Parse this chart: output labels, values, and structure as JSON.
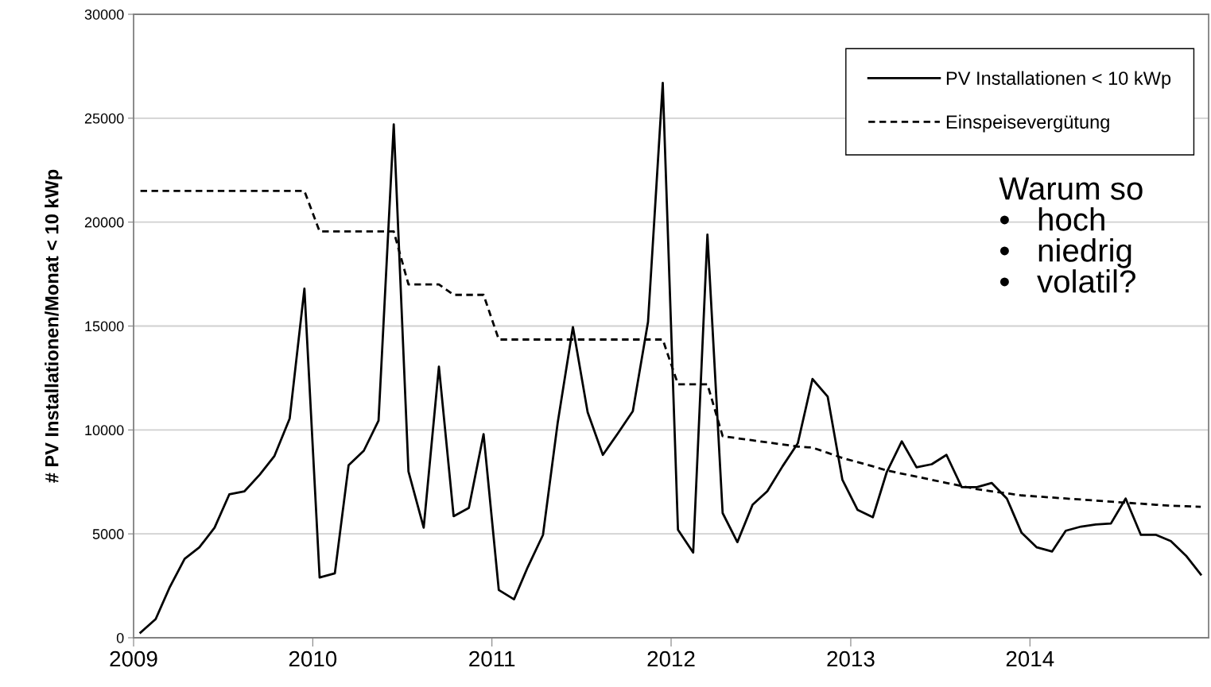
{
  "chart_data": {
    "type": "line",
    "ylabel": "# PV Installationen/Monat < 10 kWp",
    "x": [
      "2009-01-15",
      "2009-02-15",
      "2009-03-15",
      "2009-04-15",
      "2009-05-15",
      "2009-06-15",
      "2009-07-15",
      "2009-08-15",
      "2009-09-15",
      "2009-10-15",
      "2009-11-15",
      "2009-12-15",
      "2010-01-15",
      "2010-02-15",
      "2010-03-15",
      "2010-04-15",
      "2010-05-15",
      "2010-06-15",
      "2010-07-15",
      "2010-08-15",
      "2010-09-15",
      "2010-10-15",
      "2010-11-15",
      "2010-12-15",
      "2011-01-15",
      "2011-02-15",
      "2011-03-15",
      "2011-04-15",
      "2011-05-15",
      "2011-06-15",
      "2011-07-15",
      "2011-08-15",
      "2011-09-15",
      "2011-10-15",
      "2011-11-15",
      "2011-12-15",
      "2012-01-15",
      "2012-02-15",
      "2012-03-15",
      "2012-04-15",
      "2012-05-15",
      "2012-06-15",
      "2012-07-15",
      "2012-08-15",
      "2012-09-15",
      "2012-10-15",
      "2012-11-15",
      "2012-12-15",
      "2013-01-15",
      "2013-02-15",
      "2013-03-15",
      "2013-04-15",
      "2013-05-15",
      "2013-06-15",
      "2013-07-15",
      "2013-08-15",
      "2013-09-15",
      "2013-10-15",
      "2013-11-15",
      "2013-12-15",
      "2014-01-15",
      "2014-02-15",
      "2014-03-15",
      "2014-04-15",
      "2014-05-15",
      "2014-06-15",
      "2014-07-15",
      "2014-08-15",
      "2014-09-15",
      "2014-10-15",
      "2014-11-15",
      "2014-12-15"
    ],
    "series": [
      {
        "name": "PV Installationen < 10 kWp",
        "color": "#000000",
        "line_style": "solid",
        "values": [
          250,
          900,
          2400,
          3800,
          4350,
          5300,
          6900,
          7050,
          7850,
          8750,
          10550,
          16800,
          2900,
          3100,
          8300,
          9000,
          10450,
          24700,
          8000,
          5300,
          13050,
          5850,
          6250,
          9800,
          2300,
          1850,
          3400,
          4950,
          10350,
          14950,
          10850,
          8800,
          9850,
          10900,
          15200,
          26700,
          5200,
          4100,
          19400,
          6000,
          4600,
          6400,
          7050,
          8250,
          9350,
          12450,
          11600,
          7600,
          6150,
          5800,
          7950,
          9450,
          8200,
          8350,
          8800,
          7250,
          7250,
          7450,
          6700,
          5050,
          4350,
          4150,
          5150,
          5350,
          5450,
          5500,
          6700,
          4950,
          4950,
          4650,
          3950,
          3050
        ]
      },
      {
        "name": "Einspeisevergütung",
        "color": "#000000",
        "line_style": "dashed",
        "values": [
          21500,
          21500,
          21500,
          21500,
          21500,
          21500,
          21500,
          21500,
          21500,
          21500,
          21500,
          21500,
          19550,
          19550,
          19550,
          19550,
          19550,
          19550,
          17000,
          17000,
          17000,
          16500,
          16500,
          16500,
          14350,
          14350,
          14350,
          14350,
          14350,
          14350,
          14350,
          14350,
          14350,
          14350,
          14350,
          14350,
          12200,
          12200,
          12200,
          9700,
          9600,
          9500,
          9400,
          9300,
          9200,
          9150,
          8900,
          8650,
          8450,
          8250,
          8050,
          7900,
          7750,
          7600,
          7450,
          7300,
          7150,
          7050,
          6950,
          6850,
          6800,
          6750,
          6700,
          6650,
          6600,
          6550,
          6500,
          6450,
          6400,
          6350,
          6330,
          6300
        ]
      }
    ],
    "xlim": [
      "2009-01-01",
      "2014-12-31"
    ],
    "xticks": [
      {
        "value": "2009-01-01",
        "label": "2009"
      },
      {
        "value": "2010-01-01",
        "label": "2010"
      },
      {
        "value": "2011-01-01",
        "label": "2011"
      },
      {
        "value": "2012-01-01",
        "label": "2012"
      },
      {
        "value": "2013-01-01",
        "label": "2013"
      },
      {
        "value": "2014-01-01",
        "label": "2014"
      }
    ],
    "ylim": [
      0,
      30000
    ],
    "yticks": [
      0,
      5000,
      10000,
      15000,
      20000,
      25000,
      30000
    ],
    "grid": "y",
    "legend": "top right",
    "marker": "none",
    "annotations": [
      "Warum so\n•   hoch\n•   niedrig\n•   volatil?"
    ]
  }
}
